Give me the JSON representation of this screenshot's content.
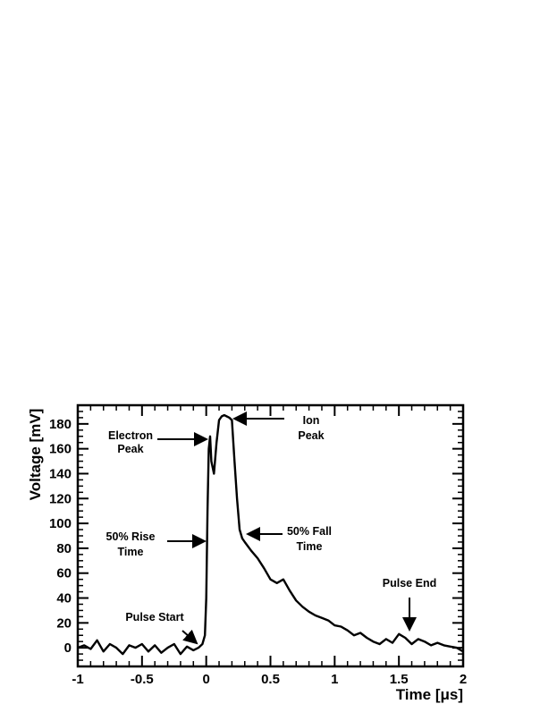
{
  "chart_data": {
    "type": "line",
    "title": "",
    "xlabel": "Time [μs]",
    "ylabel": "Voltage [mV]",
    "xlim": [
      -1,
      2
    ],
    "ylim": [
      -15,
      195
    ],
    "grid": false,
    "x_ticks": [
      -1,
      -0.5,
      0,
      0.5,
      1,
      1.5,
      2
    ],
    "x_tick_labels": [
      "-1",
      "-0.5",
      "0",
      "0.5",
      "1",
      "1.5",
      "2"
    ],
    "y_ticks": [
      0,
      20,
      40,
      60,
      80,
      100,
      120,
      140,
      160,
      180
    ],
    "y_tick_labels": [
      "0",
      "20",
      "40",
      "60",
      "80",
      "100",
      "120",
      "140",
      "160",
      "180"
    ],
    "series": [
      {
        "x": [
          -1.0,
          -0.95,
          -0.9,
          -0.85,
          -0.8,
          -0.75,
          -0.7,
          -0.65,
          -0.6,
          -0.55,
          -0.5,
          -0.45,
          -0.4,
          -0.35,
          -0.3,
          -0.25,
          -0.2,
          -0.15,
          -0.1,
          -0.06,
          -0.03,
          -0.01,
          0.0,
          0.01,
          0.02,
          0.03,
          0.04,
          0.06,
          0.08,
          0.1,
          0.12,
          0.14,
          0.16,
          0.18,
          0.2,
          0.22,
          0.24,
          0.26,
          0.28,
          0.3,
          0.35,
          0.4,
          0.45,
          0.5,
          0.55,
          0.6,
          0.65,
          0.7,
          0.75,
          0.8,
          0.85,
          0.9,
          0.95,
          1.0,
          1.05,
          1.1,
          1.15,
          1.2,
          1.25,
          1.3,
          1.35,
          1.4,
          1.45,
          1.5,
          1.55,
          1.6,
          1.65,
          1.7,
          1.75,
          1.8,
          1.85,
          1.9,
          1.95,
          2.0
        ],
        "y": [
          0,
          2,
          -1,
          6,
          -3,
          3,
          0,
          -5,
          2,
          0,
          3,
          -3,
          2,
          -4,
          0,
          3,
          -5,
          1,
          -2,
          0,
          3,
          10,
          40,
          110,
          160,
          170,
          150,
          140,
          165,
          183,
          186,
          187,
          186,
          185,
          183,
          150,
          120,
          95,
          88,
          85,
          78,
          72,
          64,
          55,
          52,
          55,
          46,
          38,
          33,
          29,
          26,
          24,
          22,
          18,
          17,
          14,
          10,
          12,
          8,
          5,
          3,
          7,
          4,
          11,
          8,
          3,
          7,
          5,
          2,
          4,
          2,
          1,
          0,
          -3
        ]
      }
    ],
    "annotations": [
      {
        "lines": [
          "Electron",
          "Peak"
        ],
        "target_x": 0.02,
        "target_y": 168
      },
      {
        "lines": [
          "Ion",
          "Peak"
        ],
        "target_x": 0.2,
        "target_y": 186
      },
      {
        "lines": [
          "50% Rise",
          "Time"
        ],
        "target_x": 0.0,
        "target_y": 85
      },
      {
        "lines": [
          "50% Fall",
          "Time"
        ],
        "target_x": 0.3,
        "target_y": 90
      },
      {
        "lines": [
          "Pulse Start"
        ],
        "target_x": -0.05,
        "target_y": 2
      },
      {
        "lines": [
          "Pulse End"
        ],
        "target_x": 1.58,
        "target_y": 12
      }
    ]
  }
}
